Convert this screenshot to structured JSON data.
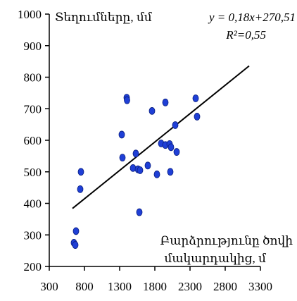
{
  "chart_data": {
    "type": "scatter",
    "y_axis_label": "Տեղումները, մմ",
    "x_axis_label_line1": "Բարձրությունը ծովի",
    "x_axis_label_line2": "մակարդակից, մ",
    "equation": "y = 0,18x+270,51",
    "r2_label": "R²=0,55",
    "xlim": [
      300,
      3300
    ],
    "ylim": [
      200,
      1000
    ],
    "x_ticks": [
      "300",
      "800",
      "1300",
      "1800",
      "2300",
      "2800",
      "3300"
    ],
    "y_ticks": [
      "200",
      "300",
      "400",
      "500",
      "600",
      "700",
      "800",
      "900",
      "1000"
    ],
    "grid": false,
    "point_color": "#1f3fd6",
    "trendline": {
      "slope": 0.18,
      "intercept": 270.51,
      "x_start": 630,
      "x_end": 3140
    },
    "points": [
      {
        "x": 650,
        "y": 275
      },
      {
        "x": 670,
        "y": 268
      },
      {
        "x": 680,
        "y": 312
      },
      {
        "x": 750,
        "y": 500
      },
      {
        "x": 740,
        "y": 445
      },
      {
        "x": 1330,
        "y": 618
      },
      {
        "x": 1340,
        "y": 545
      },
      {
        "x": 1400,
        "y": 735
      },
      {
        "x": 1405,
        "y": 727
      },
      {
        "x": 1490,
        "y": 512
      },
      {
        "x": 1530,
        "y": 558
      },
      {
        "x": 1560,
        "y": 508
      },
      {
        "x": 1590,
        "y": 505
      },
      {
        "x": 1580,
        "y": 372
      },
      {
        "x": 1700,
        "y": 520
      },
      {
        "x": 1760,
        "y": 693
      },
      {
        "x": 1830,
        "y": 492
      },
      {
        "x": 1890,
        "y": 590
      },
      {
        "x": 1950,
        "y": 720
      },
      {
        "x": 1950,
        "y": 585
      },
      {
        "x": 2010,
        "y": 588
      },
      {
        "x": 2020,
        "y": 500
      },
      {
        "x": 2030,
        "y": 578
      },
      {
        "x": 2090,
        "y": 648
      },
      {
        "x": 2110,
        "y": 563
      },
      {
        "x": 2380,
        "y": 733
      },
      {
        "x": 2400,
        "y": 675
      }
    ]
  }
}
